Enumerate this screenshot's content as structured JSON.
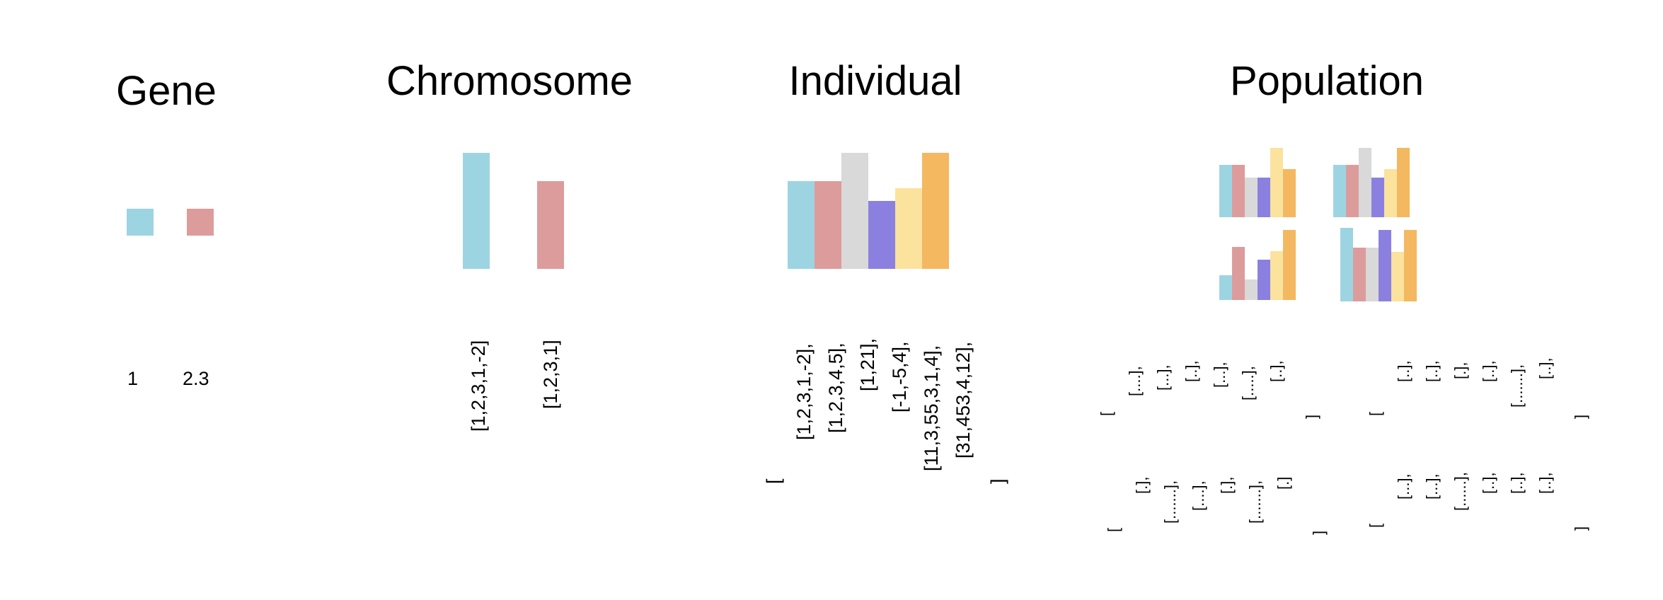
{
  "titles": {
    "gene": "Gene",
    "chromosome": "Chromosome",
    "individual": "Individual",
    "population": "Population"
  },
  "colors": {
    "blue": "#9dd4e2",
    "red": "#dc9c9b",
    "gray": "#d9d9d9",
    "purple": "#8b80e0",
    "yellow": "#fbe29d",
    "orange": "#f4b860"
  },
  "gene": {
    "values": [
      "1",
      "2.3"
    ]
  },
  "chromosome": {
    "encodings": [
      "[1,2,3,1,-2]",
      "[1,2,3,1]"
    ]
  },
  "individual": {
    "open_bracket": "[",
    "close_bracket": "]",
    "chromosomes": [
      "[1,2,3,1,-2],",
      "[1,2,3,4,5],",
      "[1,21],",
      "[-1,-5,4],",
      "[11,3,55,3,1,4],",
      "[31,453,4,12],"
    ]
  },
  "population": {
    "open_bracket": "[",
    "close_bracket": "]",
    "individuals": [
      {
        "chromosomes": [
          "[....],",
          "[...],",
          "[..],",
          "[...],",
          "[.....],",
          "[..],"
        ]
      },
      {
        "chromosomes": [
          "[..],",
          "[..],",
          "[.],",
          "[..],",
          "[.......],",
          "[..],"
        ]
      },
      {
        "chromosomes": [
          "[.],",
          "[.......],",
          "[....],",
          "[.],",
          "[.......],",
          "[.]"
        ]
      },
      {
        "chromosomes": [
          "[...],",
          "[...],",
          "[......],",
          "[..],",
          "[..],",
          "[..],"
        ]
      }
    ]
  }
}
